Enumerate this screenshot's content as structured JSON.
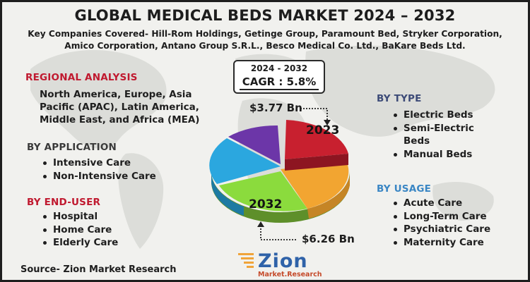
{
  "title": "GLOBAL MEDICAL BEDS MARKET 2024 – 2032",
  "subtitle": "Key Companies Covered- Hill-Rom Holdings, Getinge Group, Paramount Bed, Stryker Corporation, Amico Corporation, Antano Group S.R.L., Besco Medical Co. Ltd., BaKare Beds Ltd.",
  "regional": {
    "heading": "REGIONAL ANALYSIS",
    "text": "North America, Europe, Asia Pacific (APAC), Latin America, Middle East, and Africa (MEA)"
  },
  "by_application": {
    "heading": "BY APPLICATION",
    "items": [
      "Intensive Care",
      "Non-Intensive Care"
    ]
  },
  "by_end_user": {
    "heading": "BY END-USER",
    "items": [
      "Hospital",
      "Home Care",
      "Elderly Care"
    ]
  },
  "by_type": {
    "heading": "BY TYPE",
    "items": [
      "Electric Beds",
      "Semi-Electric Beds",
      "Manual Beds"
    ]
  },
  "by_usage": {
    "heading": "BY USAGE",
    "items": [
      "Acute Care",
      "Long-Term Care",
      "Psychiatric Care",
      "Maternity Care"
    ]
  },
  "cagr": {
    "period": "2024 - 2032",
    "value": "CAGR : 5.8%"
  },
  "values": {
    "start": "$3.77 Bn",
    "end": "$6.26 Bn",
    "start_year": "2023",
    "end_year": "2032"
  },
  "source": "Source- Zion Market Research",
  "logo": {
    "word": "Zion",
    "sub": "Market.Research"
  },
  "colors": {
    "red_heading": "#c0192f",
    "navy_heading": "#3c4a77",
    "blue_heading": "#3a86c4",
    "slice_red": "#c8202f",
    "slice_orange": "#f2a531",
    "slice_green": "#8bdb3d",
    "slice_blue": "#2ba7df",
    "slice_purple": "#6c36a8"
  }
}
